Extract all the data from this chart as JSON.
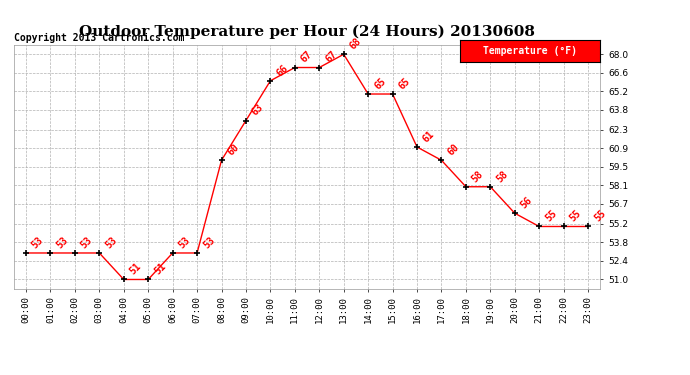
{
  "title": "Outdoor Temperature per Hour (24 Hours) 20130608",
  "copyright": "Copyright 2013 Cartronics.com",
  "legend_label": "Temperature (°F)",
  "hours": [
    0,
    1,
    2,
    3,
    4,
    5,
    6,
    7,
    8,
    9,
    10,
    11,
    12,
    13,
    14,
    15,
    16,
    17,
    18,
    19,
    20,
    21,
    22,
    23
  ],
  "temperatures": [
    53,
    53,
    53,
    53,
    51,
    51,
    53,
    53,
    60,
    63,
    66,
    67,
    67,
    68,
    65,
    65,
    61,
    60,
    58,
    58,
    56,
    55,
    55,
    55
  ],
  "yticks": [
    51.0,
    52.4,
    53.8,
    55.2,
    56.7,
    58.1,
    59.5,
    60.9,
    62.3,
    63.8,
    65.2,
    66.6,
    68.0
  ],
  "ylim": [
    50.3,
    68.7
  ],
  "line_color": "red",
  "marker_color": "black",
  "grid_color": "#aaaaaa",
  "bg_color": "white",
  "title_fontsize": 11,
  "copyright_fontsize": 7,
  "label_fontsize": 7,
  "tick_fontsize": 6.5,
  "legend_bg": "red",
  "legend_text_color": "white",
  "legend_fontsize": 7
}
